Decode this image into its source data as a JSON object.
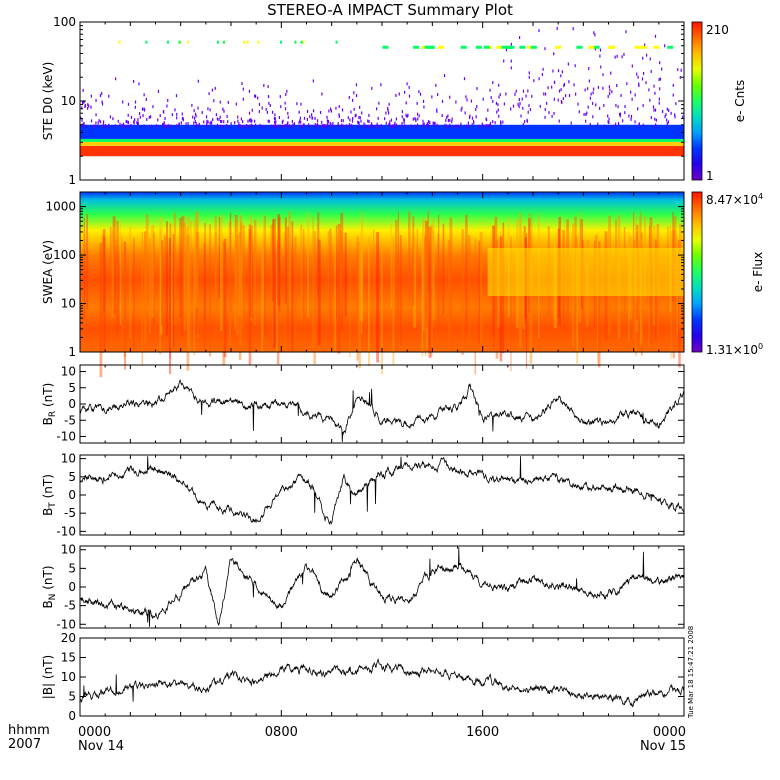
{
  "title": "STEREO-A IMPACT Summary Plot",
  "footer": {
    "row_label_1": "hhmm",
    "row_label_2": "2007",
    "ticks": [
      {
        "time": "0000",
        "date": "Nov 14"
      },
      {
        "time": "0800",
        "date": ""
      },
      {
        "time": "1600",
        "date": ""
      },
      {
        "time": "0000",
        "date": "Nov 15"
      }
    ],
    "timestamp": "Tue Mar 18 15:47:21 2008"
  },
  "chart_data": [
    {
      "type": "heatmap",
      "ylabel": "STE D0 (keV)",
      "yscale": "log",
      "ylim": [
        1,
        100
      ],
      "y_ticks": [
        "1",
        "10",
        "100"
      ],
      "colorbar": {
        "label": "e- Cnts",
        "max": "210",
        "min": "1"
      },
      "description_values": {
        "hot_band_keV": [
          2,
          2.7
        ],
        "cool_band_keV": [
          3,
          5
        ]
      },
      "colors": {
        "band_hot": "#ff3300",
        "band_mid": "#00ff66",
        "band_low": "#0033ff",
        "speckle": "#6600ff"
      }
    },
    {
      "type": "heatmap",
      "ylabel": "SWEA (eV)",
      "yscale": "log",
      "ylim": [
        1,
        2000
      ],
      "y_ticks": [
        "1",
        "10",
        "100",
        "1000"
      ],
      "colorbar": {
        "label": "e- Flux",
        "max_base": "8.47×10",
        "max_exp": "4",
        "min_base": "1.31×10",
        "min_exp": "0"
      }
    },
    {
      "type": "line",
      "ylabel_base": "B",
      "ylabel_sub": "R",
      "ylabel_unit": " (nT)",
      "ylim": [
        -12,
        12
      ],
      "y_ticks": [
        "-10",
        "-5",
        "0",
        "5",
        "10"
      ],
      "x_hours": [
        0,
        1,
        2,
        3,
        4,
        4.5,
        5,
        6,
        7,
        8,
        9,
        10,
        10.5,
        11,
        12,
        13,
        14,
        15,
        15.5,
        16,
        17,
        18,
        19,
        20,
        21,
        22,
        23,
        24
      ],
      "values": [
        -2,
        -1,
        0,
        0,
        7,
        2,
        0,
        1,
        0,
        1,
        -3,
        -5,
        -9,
        3,
        -5,
        -6,
        -3,
        -1,
        5,
        -5,
        -3,
        -5,
        2,
        -6,
        -5,
        -3,
        -7,
        4
      ]
    },
    {
      "type": "line",
      "ylabel_base": "B",
      "ylabel_sub": "T",
      "ylabel_unit": " (nT)",
      "ylim": [
        -11,
        11
      ],
      "y_ticks": [
        "-10",
        "-5",
        "0",
        "5",
        "10"
      ],
      "x_hours": [
        0,
        1,
        2,
        3,
        4,
        5,
        6,
        7,
        8,
        9,
        10,
        10.5,
        11,
        12,
        13,
        14,
        15,
        16,
        17,
        18,
        19,
        20,
        21,
        22,
        23,
        24
      ],
      "values": [
        4,
        5,
        6,
        7,
        4,
        -3,
        -5,
        -7,
        2,
        5,
        -8,
        5,
        0,
        6,
        8,
        9,
        7,
        5,
        4,
        5,
        4,
        3,
        2,
        2,
        -2,
        -4
      ]
    },
    {
      "type": "line",
      "ylabel_base": "B",
      "ylabel_sub": "N",
      "ylabel_unit": " (nT)",
      "ylim": [
        -11,
        11
      ],
      "y_ticks": [
        "-10",
        "-5",
        "0",
        "5",
        "10"
      ],
      "x_hours": [
        0,
        1,
        2,
        3,
        4,
        5,
        5.5,
        6,
        7,
        8,
        9,
        10,
        11,
        12,
        13,
        14,
        15,
        16,
        17,
        18,
        19,
        20,
        21,
        22,
        23,
        24
      ],
      "values": [
        -3,
        -5,
        -6,
        -8,
        -2,
        4,
        -10,
        8,
        0,
        -5,
        5,
        -3,
        7,
        -2,
        -4,
        4,
        6,
        1,
        0,
        2,
        0,
        -1,
        -2,
        2,
        1,
        3
      ]
    },
    {
      "type": "line",
      "ylabel": "|B| (nT)",
      "ylim": [
        0,
        20
      ],
      "y_ticks": [
        "0",
        "5",
        "10",
        "15",
        "20"
      ],
      "x_hours": [
        0,
        1,
        2,
        3,
        4,
        5,
        6,
        7,
        8,
        9,
        10,
        11,
        12,
        13,
        14,
        15,
        16,
        17,
        18,
        19,
        20,
        21,
        22,
        23,
        24
      ],
      "values": [
        5,
        6,
        7,
        8,
        8,
        7,
        10,
        9,
        12,
        12,
        11,
        12,
        13,
        12,
        11,
        10,
        9,
        8,
        7,
        7,
        6,
        5,
        4,
        6,
        7
      ]
    }
  ]
}
